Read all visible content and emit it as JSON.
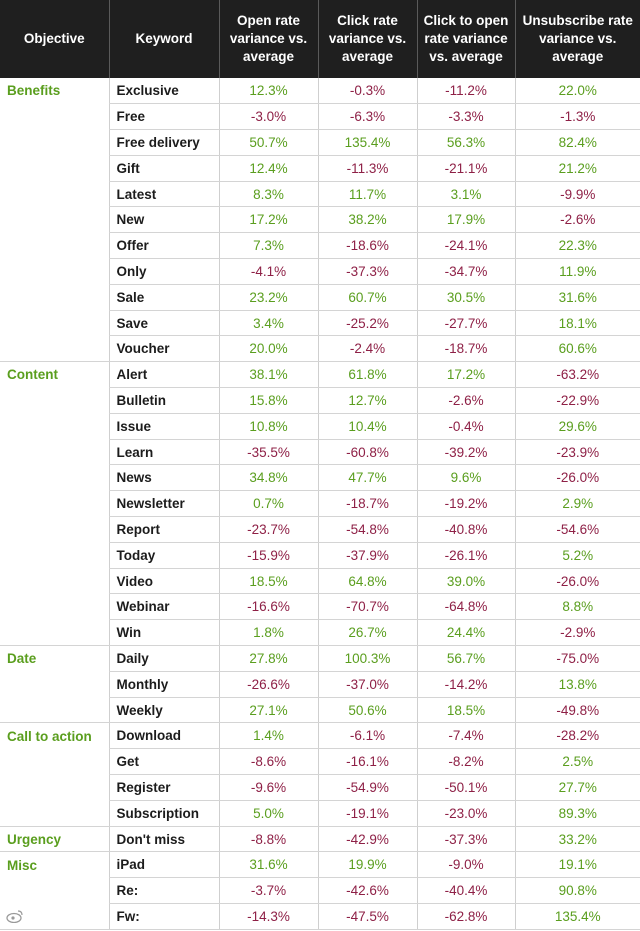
{
  "headers": {
    "objective": "Objective",
    "keyword": "Keyword",
    "open_rate": "Open rate variance vs. average",
    "click_rate": "Click rate variance vs. average",
    "click_to_open": "Click to open rate variance vs. average",
    "unsubscribe": "Unsubscribe rate variance vs. average"
  },
  "colors": {
    "positive": "#5a9e1e",
    "negative": "#8e2046",
    "header_bg": "#1f1f1f"
  },
  "rows": [
    {
      "objective": "Benefits",
      "keyword": "Exclusive",
      "open": "12.3%",
      "click": "-0.3%",
      "cto": "-11.2%",
      "unsub": "22.0%"
    },
    {
      "objective": "",
      "keyword": "Free",
      "open": "-3.0%",
      "click": "-6.3%",
      "cto": "-3.3%",
      "unsub": "-1.3%"
    },
    {
      "objective": "",
      "keyword": "Free delivery",
      "open": "50.7%",
      "click": "135.4%",
      "cto": "56.3%",
      "unsub": "82.4%"
    },
    {
      "objective": "",
      "keyword": "Gift",
      "open": "12.4%",
      "click": "-11.3%",
      "cto": "-21.1%",
      "unsub": "21.2%"
    },
    {
      "objective": "",
      "keyword": "Latest",
      "open": "8.3%",
      "click": "11.7%",
      "cto": "3.1%",
      "unsub": "-9.9%"
    },
    {
      "objective": "",
      "keyword": "New",
      "open": "17.2%",
      "click": "38.2%",
      "cto": "17.9%",
      "unsub": "-2.6%"
    },
    {
      "objective": "",
      "keyword": "Offer",
      "open": "7.3%",
      "click": "-18.6%",
      "cto": "-24.1%",
      "unsub": "22.3%"
    },
    {
      "objective": "",
      "keyword": "Only",
      "open": "-4.1%",
      "click": "-37.3%",
      "cto": "-34.7%",
      "unsub": "11.9%"
    },
    {
      "objective": "",
      "keyword": "Sale",
      "open": "23.2%",
      "click": "60.7%",
      "cto": "30.5%",
      "unsub": "31.6%"
    },
    {
      "objective": "",
      "keyword": "Save",
      "open": "3.4%",
      "click": "-25.2%",
      "cto": "-27.7%",
      "unsub": "18.1%"
    },
    {
      "objective": "",
      "keyword": "Voucher",
      "open": "20.0%",
      "click": "-2.4%",
      "cto": "-18.7%",
      "unsub": "60.6%"
    },
    {
      "objective": "Content",
      "keyword": "Alert",
      "open": "38.1%",
      "click": "61.8%",
      "cto": "17.2%",
      "unsub": "-63.2%"
    },
    {
      "objective": "",
      "keyword": "Bulletin",
      "open": "15.8%",
      "click": "12.7%",
      "cto": "-2.6%",
      "unsub": "-22.9%"
    },
    {
      "objective": "",
      "keyword": "Issue",
      "open": "10.8%",
      "click": "10.4%",
      "cto": "-0.4%",
      "unsub": "29.6%"
    },
    {
      "objective": "",
      "keyword": "Learn",
      "open": "-35.5%",
      "click": "-60.8%",
      "cto": "-39.2%",
      "unsub": "-23.9%"
    },
    {
      "objective": "",
      "keyword": "News",
      "open": "34.8%",
      "click": "47.7%",
      "cto": "9.6%",
      "unsub": "-26.0%"
    },
    {
      "objective": "",
      "keyword": "Newsletter",
      "open": "0.7%",
      "click": "-18.7%",
      "cto": "-19.2%",
      "unsub": "2.9%"
    },
    {
      "objective": "",
      "keyword": "Report",
      "open": "-23.7%",
      "click": "-54.8%",
      "cto": "-40.8%",
      "unsub": "-54.6%"
    },
    {
      "objective": "",
      "keyword": "Today",
      "open": "-15.9%",
      "click": "-37.9%",
      "cto": "-26.1%",
      "unsub": "5.2%"
    },
    {
      "objective": "",
      "keyword": "Video",
      "open": "18.5%",
      "click": "64.8%",
      "cto": "39.0%",
      "unsub": "-26.0%"
    },
    {
      "objective": "",
      "keyword": "Webinar",
      "open": "-16.6%",
      "click": "-70.7%",
      "cto": "-64.8%",
      "unsub": "8.8%"
    },
    {
      "objective": "",
      "keyword": "Win",
      "open": "1.8%",
      "click": "26.7%",
      "cto": "24.4%",
      "unsub": "-2.9%"
    },
    {
      "objective": "Date",
      "keyword": "Daily",
      "open": "27.8%",
      "click": "100.3%",
      "cto": "56.7%",
      "unsub": "-75.0%"
    },
    {
      "objective": "",
      "keyword": "Monthly",
      "open": "-26.6%",
      "click": "-37.0%",
      "cto": "-14.2%",
      "unsub": "13.8%"
    },
    {
      "objective": "",
      "keyword": "Weekly",
      "open": "27.1%",
      "click": "50.6%",
      "cto": "18.5%",
      "unsub": "-49.8%"
    },
    {
      "objective": "Call to action",
      "keyword": "Download",
      "open": "1.4%",
      "click": "-6.1%",
      "cto": "-7.4%",
      "unsub": "-28.2%"
    },
    {
      "objective": "",
      "keyword": "Get",
      "open": "-8.6%",
      "click": "-16.1%",
      "cto": "-8.2%",
      "unsub": "2.5%"
    },
    {
      "objective": "",
      "keyword": "Register",
      "open": "-9.6%",
      "click": "-54.9%",
      "cto": "-50.1%",
      "unsub": "27.7%"
    },
    {
      "objective": "",
      "keyword": "Subscription",
      "open": "5.0%",
      "click": "-19.1%",
      "cto": "-23.0%",
      "unsub": "89.3%"
    },
    {
      "objective": "Urgency",
      "keyword": "Don't miss",
      "open": "-8.8%",
      "click": "-42.9%",
      "cto": "-37.3%",
      "unsub": "33.2%"
    },
    {
      "objective": "Misc",
      "keyword": "iPad",
      "open": "31.6%",
      "click": "19.9%",
      "cto": "-9.0%",
      "unsub": "19.1%"
    },
    {
      "objective": "",
      "keyword": "Re:",
      "open": "-3.7%",
      "click": "-42.6%",
      "cto": "-40.4%",
      "unsub": "90.8%"
    },
    {
      "objective": "",
      "keyword": "Fw:",
      "open": "-14.3%",
      "click": "-47.5%",
      "cto": "-62.8%",
      "unsub": "135.4%"
    }
  ]
}
